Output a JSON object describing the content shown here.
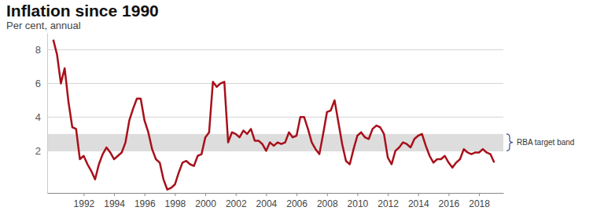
{
  "chart_data": {
    "type": "line",
    "title": "Inflation since 1990",
    "subtitle": "Per cent, annual",
    "color": "#a8101a",
    "grid": true,
    "xlim": [
      1989.6,
      2019.6
    ],
    "xticks": [
      1992,
      1994,
      1996,
      1998,
      2000,
      2002,
      2004,
      2006,
      2008,
      2010,
      2012,
      2014,
      2016,
      2018
    ],
    "ylim": [
      -0.5,
      9
    ],
    "yticks": [
      2,
      4,
      6,
      8
    ],
    "target_band": [
      2,
      3
    ],
    "annotation": "RBA target band",
    "x": [
      1990,
      1990.25,
      1990.5,
      1990.75,
      1991,
      1991.25,
      1991.5,
      1991.75,
      1992,
      1992.25,
      1992.5,
      1992.75,
      1993,
      1993.25,
      1993.5,
      1993.75,
      1994,
      1994.25,
      1994.5,
      1994.75,
      1995,
      1995.25,
      1995.5,
      1995.75,
      1996,
      1996.25,
      1996.5,
      1996.75,
      1997,
      1997.25,
      1997.5,
      1997.75,
      1998,
      1998.25,
      1998.5,
      1998.75,
      1999,
      1999.25,
      1999.5,
      1999.75,
      2000,
      2000.25,
      2000.5,
      2000.75,
      2001,
      2001.25,
      2001.5,
      2001.75,
      2002,
      2002.25,
      2002.5,
      2002.75,
      2003,
      2003.25,
      2003.5,
      2003.75,
      2004,
      2004.25,
      2004.5,
      2004.75,
      2005,
      2005.25,
      2005.5,
      2005.75,
      2006,
      2006.25,
      2006.5,
      2006.75,
      2007,
      2007.25,
      2007.5,
      2007.75,
      2008,
      2008.25,
      2008.5,
      2008.75,
      2009,
      2009.25,
      2009.5,
      2009.75,
      2010,
      2010.25,
      2010.5,
      2010.75,
      2011,
      2011.25,
      2011.5,
      2011.75,
      2012,
      2012.25,
      2012.5,
      2012.75,
      2013,
      2013.25,
      2013.5,
      2013.75,
      2014,
      2014.25,
      2014.5,
      2014.75,
      2015,
      2015.25,
      2015.5,
      2015.75,
      2016,
      2016.25,
      2016.5,
      2016.75,
      2017,
      2017.25,
      2017.5,
      2017.75,
      2018,
      2018.25,
      2018.5,
      2018.75,
      2019
    ],
    "values": [
      8.6,
      7.7,
      6.0,
      6.9,
      4.9,
      3.4,
      3.3,
      1.5,
      1.7,
      1.2,
      0.8,
      0.3,
      1.2,
      1.8,
      2.2,
      1.9,
      1.5,
      1.7,
      1.9,
      2.5,
      3.8,
      4.5,
      5.1,
      5.1,
      3.8,
      3.1,
      2.1,
      1.5,
      1.3,
      0.3,
      -0.3,
      -0.2,
      0.0,
      0.7,
      1.3,
      1.4,
      1.2,
      1.1,
      1.7,
      1.8,
      2.8,
      3.1,
      6.1,
      5.8,
      6.0,
      6.1,
      2.5,
      3.1,
      3.0,
      2.8,
      3.2,
      3.0,
      3.3,
      2.6,
      2.6,
      2.4,
      2.0,
      2.5,
      2.3,
      2.5,
      2.4,
      2.5,
      3.1,
      2.8,
      2.9,
      4.0,
      4.0,
      3.3,
      2.5,
      2.1,
      1.8,
      3.0,
      4.3,
      4.4,
      5.0,
      3.7,
      2.4,
      1.4,
      1.2,
      2.1,
      2.9,
      3.1,
      2.8,
      2.7,
      3.3,
      3.5,
      3.4,
      3.0,
      1.6,
      1.2,
      2.0,
      2.2,
      2.5,
      2.4,
      2.2,
      2.7,
      2.9,
      3.0,
      2.3,
      1.7,
      1.3,
      1.5,
      1.5,
      1.7,
      1.3,
      1.0,
      1.3,
      1.5,
      2.1,
      1.9,
      1.8,
      1.9,
      1.9,
      2.1,
      1.9,
      1.8,
      1.3
    ]
  }
}
